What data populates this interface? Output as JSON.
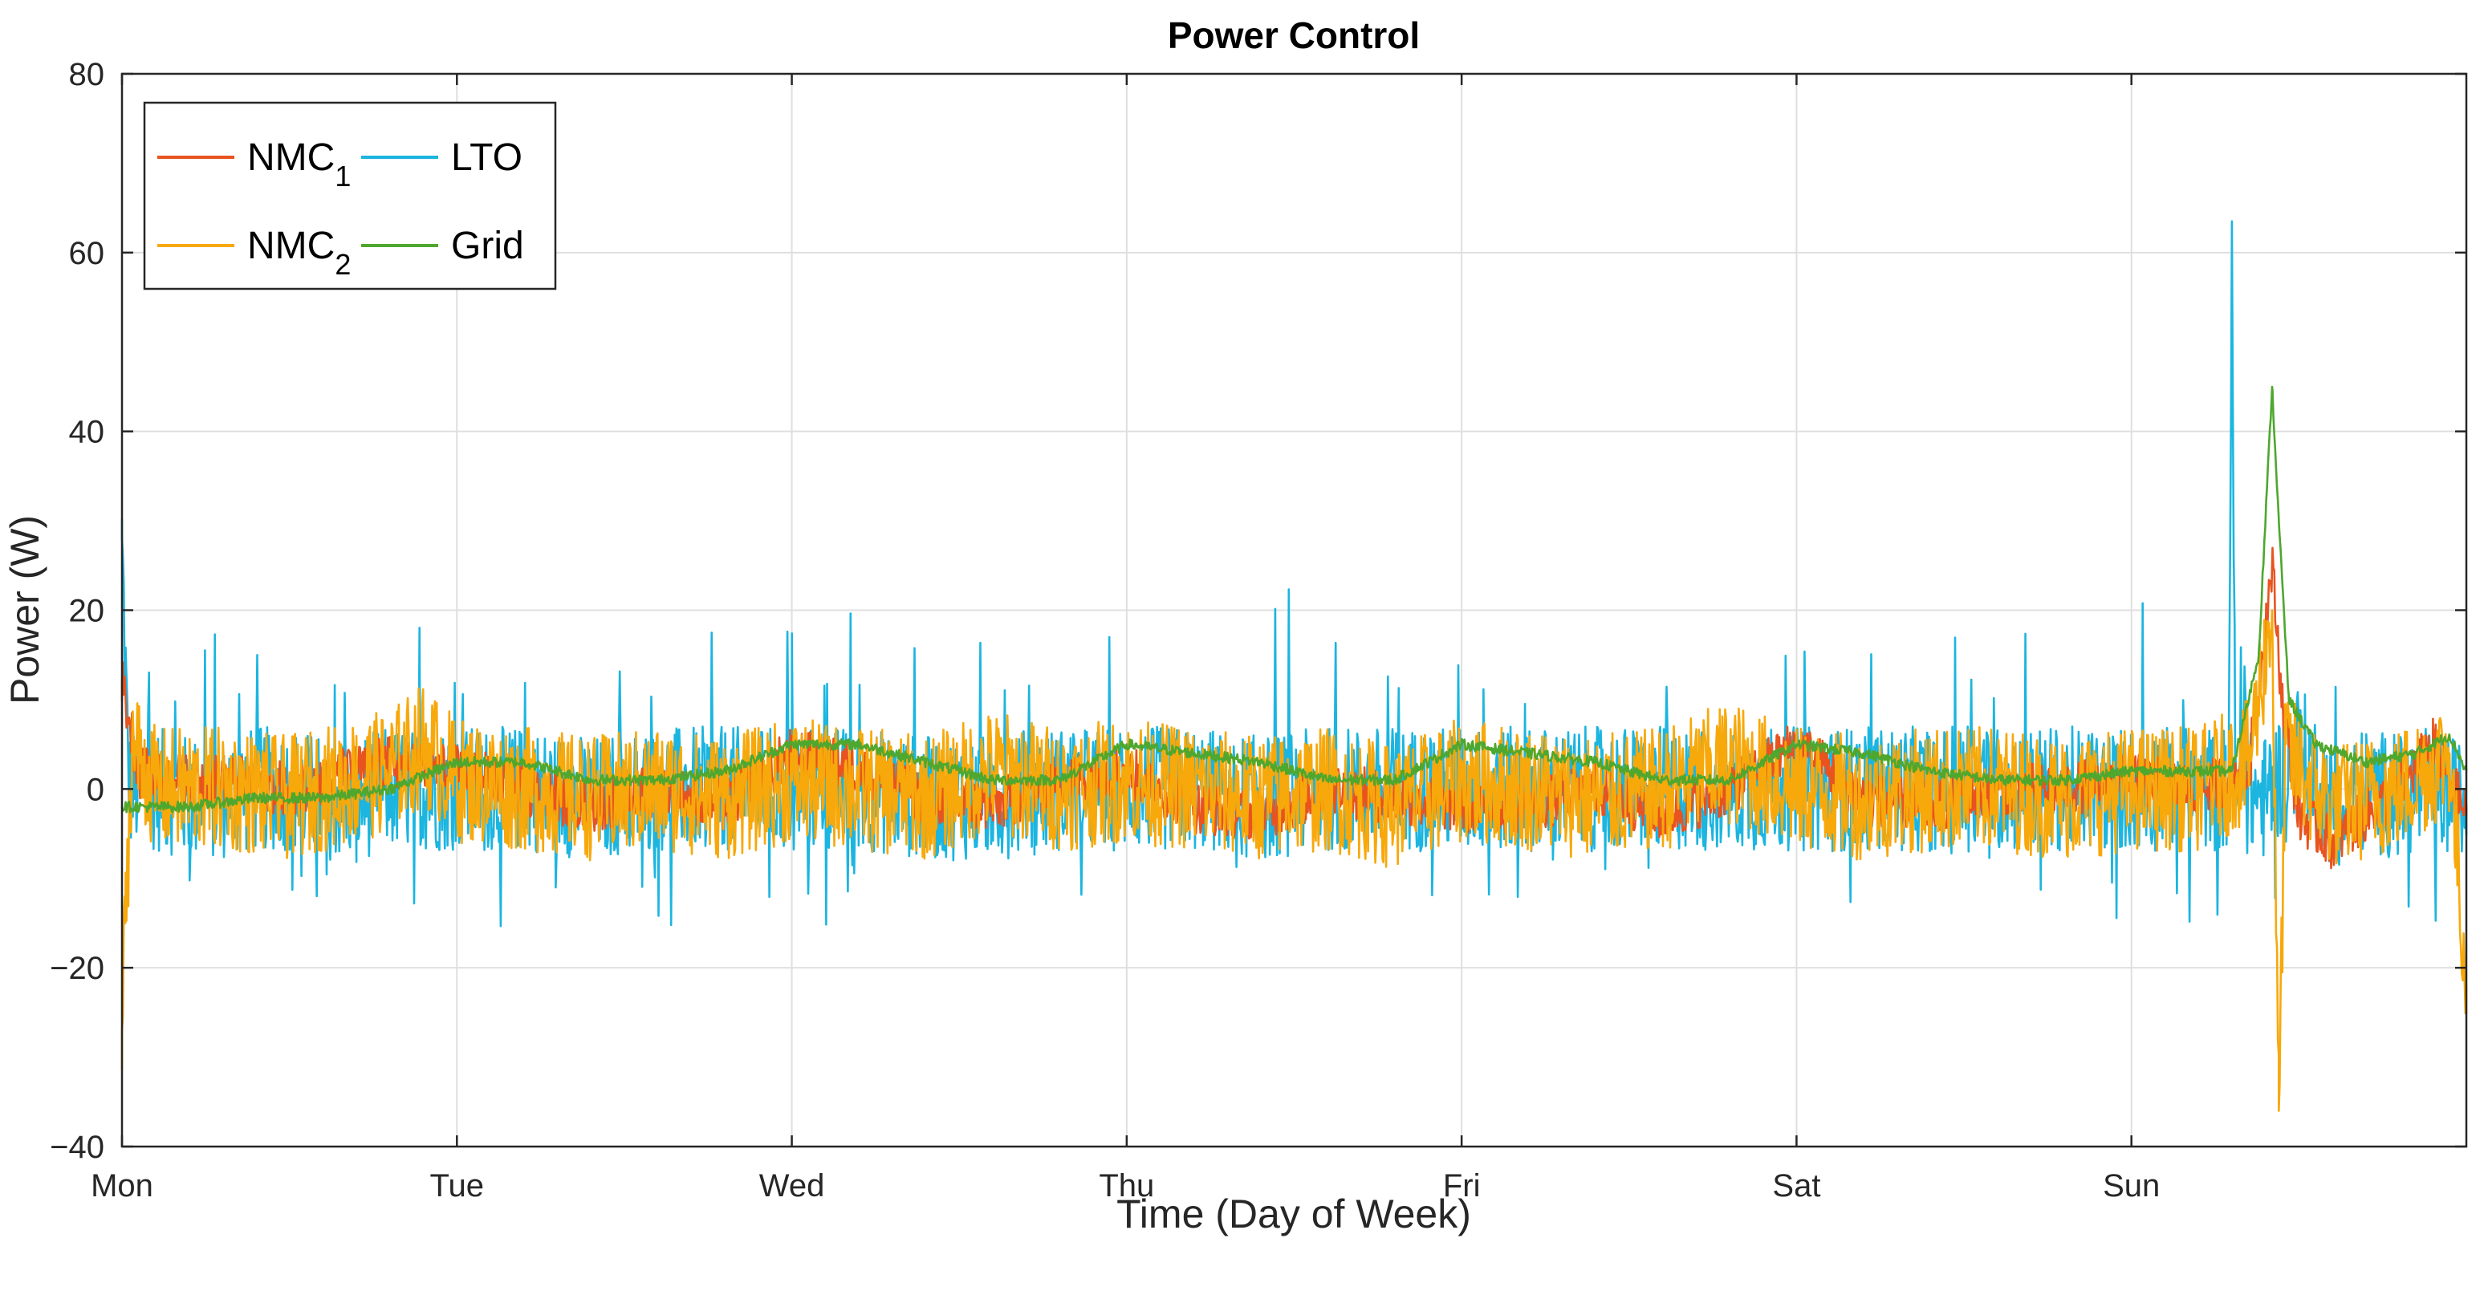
{
  "chart_data": {
    "type": "line",
    "title": "Power Control",
    "xlabel": "Time (Day of Week)",
    "ylabel": "Power (W)",
    "xlim": [
      0,
      7
    ],
    "ylim": [
      -40,
      80
    ],
    "x_ticks": [
      {
        "value": 0,
        "label": "Mon"
      },
      {
        "value": 1,
        "label": "Tue"
      },
      {
        "value": 2,
        "label": "Wed"
      },
      {
        "value": 3,
        "label": "Thu"
      },
      {
        "value": 4,
        "label": "Fri"
      },
      {
        "value": 5,
        "label": "Sat"
      },
      {
        "value": 6,
        "label": "Sun"
      }
    ],
    "y_ticks": [
      {
        "value": -40,
        "label": "−40"
      },
      {
        "value": -20,
        "label": "−20"
      },
      {
        "value": 0,
        "label": "0"
      },
      {
        "value": 20,
        "label": "20"
      },
      {
        "value": 40,
        "label": "40"
      },
      {
        "value": 60,
        "label": "60"
      },
      {
        "value": 80,
        "label": "80"
      }
    ],
    "grid": true,
    "legend_position": "top-left",
    "series": [
      {
        "name": "LTO",
        "label_main": "LTO",
        "label_sub": "",
        "color": "#1BB5E0",
        "x": [
          0,
          0.02,
          0.05,
          0.1,
          0.2,
          0.3,
          0.4,
          0.5,
          0.6,
          0.7,
          0.8,
          0.9,
          1.0,
          1.2,
          1.4,
          1.6,
          1.8,
          2.0,
          2.2,
          2.4,
          2.6,
          2.8,
          3.0,
          3.2,
          3.4,
          3.6,
          3.8,
          4.0,
          4.2,
          4.4,
          4.6,
          4.8,
          5.0,
          5.2,
          5.4,
          5.6,
          5.8,
          6.0,
          6.2,
          6.29,
          6.3,
          6.31,
          6.4,
          6.5,
          6.6,
          6.7,
          6.8,
          6.9,
          7.0
        ],
        "y": [
          28,
          0,
          0,
          0,
          -1,
          -1,
          0,
          0,
          -1,
          -1,
          0,
          0,
          0,
          0,
          -1,
          0,
          0,
          0,
          0,
          -1,
          -1,
          0,
          0,
          0,
          -1,
          0,
          0,
          0,
          0,
          0,
          0,
          0,
          0,
          0,
          0,
          0,
          0,
          0,
          0,
          0,
          63,
          0,
          -1,
          5,
          -2,
          0,
          -1,
          0,
          -2
        ],
        "noise_amp": 7,
        "spike_every": 0.08,
        "spike_height": 16
      },
      {
        "name": "NMC1",
        "label_main": "NMC",
        "label_sub": "1",
        "color": "#E8531F",
        "x": [
          0,
          0.02,
          0.05,
          0.1,
          0.3,
          0.5,
          0.8,
          1.0,
          1.2,
          1.4,
          1.6,
          1.8,
          2.0,
          2.2,
          2.4,
          2.6,
          2.8,
          3.0,
          3.2,
          3.4,
          3.6,
          3.8,
          4.0,
          4.2,
          4.4,
          4.6,
          4.8,
          5.0,
          5.2,
          5.4,
          5.6,
          5.8,
          6.0,
          6.2,
          6.35,
          6.42,
          6.45,
          6.5,
          6.6,
          6.8,
          6.9,
          7.0
        ],
        "y": [
          12,
          8,
          2,
          1,
          1,
          0,
          3,
          2,
          0,
          -2,
          0,
          -2,
          4,
          2,
          -1,
          -2,
          1,
          2,
          -2,
          -3,
          0,
          -1,
          -2,
          -2,
          0,
          -3,
          0,
          5,
          -1,
          -2,
          0,
          0,
          1,
          0,
          2,
          25,
          10,
          -3,
          -6,
          0,
          5,
          -3
        ],
        "noise_amp": 3,
        "spike_every": 0,
        "spike_height": 0
      },
      {
        "name": "NMC2",
        "label_main": "NMC",
        "label_sub": "2",
        "color": "#F7A80A",
        "x": [
          0,
          0.01,
          0.03,
          0.1,
          0.3,
          0.5,
          0.8,
          0.9,
          1.0,
          1.2,
          1.4,
          1.6,
          1.8,
          2.0,
          2.2,
          2.4,
          2.6,
          2.8,
          3.0,
          3.2,
          3.4,
          3.6,
          3.8,
          4.0,
          4.2,
          4.4,
          4.6,
          4.8,
          5.0,
          5.2,
          5.4,
          5.6,
          5.8,
          6.0,
          6.2,
          6.35,
          6.42,
          6.44,
          6.46,
          6.5,
          6.6,
          6.8,
          6.95,
          7.0
        ],
        "y": [
          -27,
          -15,
          5,
          0,
          0,
          -1,
          2,
          5,
          1,
          0,
          -1,
          0,
          -1,
          1,
          0,
          -1,
          2,
          0,
          1,
          0,
          -1,
          0,
          -2,
          1,
          0,
          -1,
          0,
          3,
          0,
          -1,
          0,
          0,
          -1,
          0,
          0,
          3,
          20,
          -36,
          5,
          2,
          -2,
          0,
          4,
          -22
        ],
        "noise_amp": 7,
        "spike_every": 0,
        "spike_height": 0
      },
      {
        "name": "Grid",
        "label_main": "Grid",
        "label_sub": "",
        "color": "#4EA72E",
        "x": [
          0,
          0.2,
          0.4,
          0.6,
          0.8,
          1.0,
          1.2,
          1.4,
          1.6,
          1.8,
          2.0,
          2.2,
          2.4,
          2.6,
          2.8,
          3.0,
          3.2,
          3.4,
          3.6,
          3.8,
          4.0,
          4.2,
          4.4,
          4.6,
          4.8,
          5.0,
          5.2,
          5.4,
          5.6,
          5.8,
          6.0,
          6.2,
          6.3,
          6.38,
          6.42,
          6.44,
          6.47,
          6.55,
          6.7,
          6.85,
          6.95,
          7.0
        ],
        "y": [
          -2,
          -2,
          -1,
          -1,
          0,
          3,
          3,
          1,
          1,
          2,
          5,
          5,
          3,
          1,
          1,
          5,
          4,
          3,
          1,
          1,
          5,
          4,
          3,
          1,
          1,
          5,
          4,
          2,
          1,
          1,
          2,
          2,
          2,
          15,
          45,
          30,
          10,
          5,
          3,
          4,
          6,
          2
        ],
        "noise_amp": 0.6,
        "spike_every": 0,
        "spike_height": 0
      }
    ]
  }
}
